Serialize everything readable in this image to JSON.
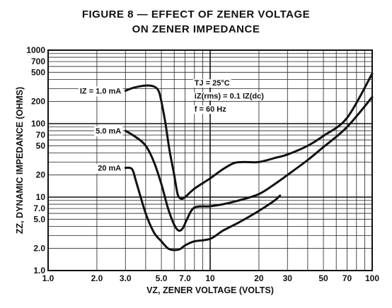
{
  "title_line1": "FIGURE 8 — EFFECT OF ZENER VOLTAGE",
  "title_line2": "ON ZENER IMPEDANCE",
  "chart_data": {
    "type": "line",
    "x_scale": "log",
    "y_scale": "log",
    "xlim": [
      1.0,
      100
    ],
    "ylim": [
      1.0,
      1000
    ],
    "xlabel": "VZ, ZENER VOLTAGE (VOLTS)",
    "ylabel": "ZZ, DYNAMIC IMPEDANCE (OHMS)",
    "x_ticks": [
      1.0,
      2.0,
      3.0,
      5.0,
      7.0,
      10,
      20,
      30,
      50,
      70,
      100
    ],
    "x_tick_labels": [
      "1.0",
      "2.0",
      "3.0",
      "5.0",
      "7.0",
      "10",
      "20",
      "30",
      "50",
      "70",
      "100"
    ],
    "y_ticks": [
      1.0,
      2.0,
      5.0,
      7.0,
      10,
      20,
      50,
      70,
      100,
      200,
      500,
      700,
      1000
    ],
    "y_tick_labels": [
      "1.0",
      "2.0",
      "5.0",
      "7.0",
      "10",
      "20",
      "50",
      "70",
      "100",
      "200",
      "500",
      "700",
      "1000"
    ],
    "grid": true,
    "conditions": [
      "TJ = 25°C",
      "iZ(rms) = 0.1 IZ(dc)",
      "f = 60 Hz"
    ],
    "series": [
      {
        "name": "IZ = 1.0 mA",
        "points": [
          [
            3.0,
            280
          ],
          [
            3.4,
            310
          ],
          [
            4.0,
            330
          ],
          [
            4.5,
            320
          ],
          [
            4.8,
            280
          ],
          [
            5.0,
            200
          ],
          [
            5.3,
            100
          ],
          [
            5.6,
            45
          ],
          [
            6.0,
            20
          ],
          [
            6.3,
            11
          ],
          [
            6.6,
            9.5
          ],
          [
            7.0,
            10
          ],
          [
            8.0,
            13
          ],
          [
            10,
            18
          ],
          [
            12,
            24
          ],
          [
            14,
            29
          ],
          [
            16,
            30
          ],
          [
            20,
            30
          ],
          [
            25,
            34
          ],
          [
            30,
            38
          ],
          [
            40,
            50
          ],
          [
            50,
            68
          ],
          [
            70,
            120
          ],
          [
            100,
            480
          ]
        ]
      },
      {
        "name": "5.0 mA",
        "points": [
          [
            3.0,
            80
          ],
          [
            3.5,
            65
          ],
          [
            4.0,
            50
          ],
          [
            4.5,
            30
          ],
          [
            5.0,
            15
          ],
          [
            5.5,
            7
          ],
          [
            6.0,
            4.2
          ],
          [
            6.4,
            3.5
          ],
          [
            6.8,
            3.8
          ],
          [
            7.2,
            5
          ],
          [
            8.0,
            7.2
          ],
          [
            10,
            7.5
          ],
          [
            12,
            8
          ],
          [
            15,
            9
          ],
          [
            20,
            11
          ],
          [
            25,
            15
          ],
          [
            30,
            20
          ],
          [
            40,
            32
          ],
          [
            50,
            48
          ],
          [
            70,
            90
          ],
          [
            100,
            230
          ]
        ]
      },
      {
        "name": "20 mA",
        "points": [
          [
            3.0,
            25
          ],
          [
            3.3,
            24
          ],
          [
            3.5,
            16
          ],
          [
            4.0,
            6
          ],
          [
            4.5,
            3.3
          ],
          [
            5.0,
            2.5
          ],
          [
            5.5,
            2.0
          ],
          [
            6.0,
            1.9
          ],
          [
            6.5,
            1.95
          ],
          [
            7.0,
            2.2
          ],
          [
            8.0,
            2.5
          ],
          [
            10,
            2.7
          ],
          [
            12,
            3.5
          ],
          [
            15,
            4.5
          ],
          [
            20,
            6.5
          ],
          [
            25,
            9
          ],
          [
            27,
            10.5
          ]
        ]
      }
    ]
  }
}
